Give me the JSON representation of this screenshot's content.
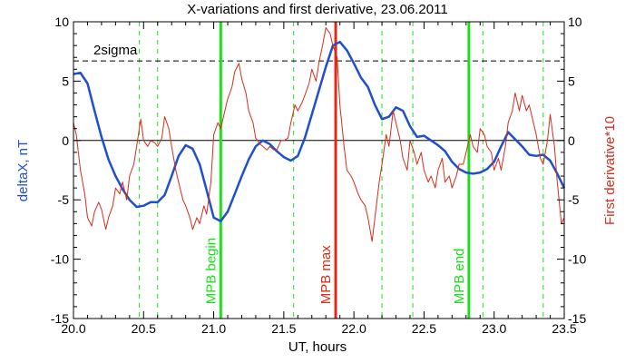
{
  "chart_data": {
    "type": "line",
    "title": "X-variations and first derivative, 23.06.2011",
    "xlabel": "UT, hours",
    "ylabel_left": "deltaX, nT",
    "ylabel_right": "First derivative*10",
    "xlim": [
      20.0,
      23.5
    ],
    "ylim": [
      -15,
      10
    ],
    "x_ticks": [
      "20.0",
      "20.5",
      "21.0",
      "21.5",
      "22.0",
      "22.5",
      "23.0",
      "23.5"
    ],
    "y_ticks_left": [
      "10",
      "5",
      "0",
      "-5",
      "-10",
      "-15"
    ],
    "y_ticks_right": [
      "10",
      "5",
      "0",
      "-5",
      "-10",
      "-15"
    ],
    "grid": false,
    "colors": {
      "deltaX": "#1f4fcf",
      "derivative": "#d62d1a",
      "mpb_edge": "#19e019",
      "mpb_max": "#e02a14",
      "threshold": "#000000"
    },
    "zero_line": 0,
    "threshold": {
      "label": "2sigma",
      "value": 6.7
    },
    "markers": [
      {
        "label": "MPB begin",
        "x": 21.05,
        "kind": "edge"
      },
      {
        "label": "MPB max",
        "x": 21.87,
        "kind": "max"
      },
      {
        "label": "MPB end",
        "x": 22.82,
        "kind": "edge"
      }
    ],
    "dashed_verticals": [
      20.47,
      20.6,
      21.57,
      22.2,
      22.42,
      22.92,
      23.35
    ],
    "series": [
      {
        "key": "deltaX",
        "x": [
          20.0,
          20.05,
          20.1,
          20.15,
          20.2,
          20.25,
          20.3,
          20.35,
          20.4,
          20.45,
          20.5,
          20.55,
          20.6,
          20.65,
          20.7,
          20.75,
          20.8,
          20.85,
          20.9,
          20.95,
          21.0,
          21.05,
          21.1,
          21.15,
          21.2,
          21.25,
          21.3,
          21.35,
          21.4,
          21.45,
          21.5,
          21.55,
          21.6,
          21.65,
          21.7,
          21.75,
          21.8,
          21.85,
          21.9,
          21.95,
          22.0,
          22.05,
          22.1,
          22.15,
          22.2,
          22.25,
          22.3,
          22.35,
          22.4,
          22.45,
          22.5,
          22.55,
          22.6,
          22.65,
          22.7,
          22.75,
          22.8,
          22.85,
          22.9,
          22.95,
          23.0,
          23.05,
          23.1,
          23.15,
          23.2,
          23.25,
          23.3,
          23.35,
          23.4,
          23.45,
          23.5
        ],
        "y": [
          5.6,
          5.7,
          4.8,
          2.5,
          0.3,
          -1.6,
          -3.0,
          -4.1,
          -5.0,
          -5.6,
          -5.5,
          -5.2,
          -5.2,
          -4.6,
          -3.0,
          -1.3,
          -0.4,
          -0.7,
          -2.0,
          -4.2,
          -6.5,
          -6.8,
          -6.0,
          -4.5,
          -3.0,
          -1.6,
          -0.5,
          0.0,
          -0.3,
          -0.9,
          -1.4,
          -1.7,
          -1.3,
          0.2,
          2.2,
          4.2,
          6.2,
          8.0,
          8.3,
          7.6,
          6.5,
          5.3,
          4.5,
          3.0,
          1.8,
          2.0,
          2.8,
          2.5,
          1.2,
          0.3,
          0.4,
          0.0,
          -0.4,
          -0.9,
          -1.8,
          -2.4,
          -2.7,
          -2.8,
          -2.7,
          -2.4,
          -1.8,
          -0.5,
          0.7,
          0.1,
          -0.5,
          -1.2,
          -1.3,
          -1.2,
          -1.7,
          -2.8,
          -4.0
        ]
      },
      {
        "key": "derivative",
        "x": [
          20.0,
          20.02,
          20.05,
          20.08,
          20.1,
          20.13,
          20.15,
          20.18,
          20.2,
          20.23,
          20.25,
          20.28,
          20.3,
          20.33,
          20.35,
          20.38,
          20.4,
          20.43,
          20.45,
          20.48,
          20.5,
          20.53,
          20.55,
          20.58,
          20.6,
          20.63,
          20.65,
          20.68,
          20.7,
          20.73,
          20.75,
          20.78,
          20.8,
          20.83,
          20.85,
          20.88,
          20.9,
          20.93,
          20.95,
          20.98,
          21.0,
          21.03,
          21.05,
          21.08,
          21.1,
          21.13,
          21.15,
          21.18,
          21.2,
          21.23,
          21.25,
          21.28,
          21.3,
          21.33,
          21.35,
          21.38,
          21.4,
          21.43,
          21.45,
          21.48,
          21.5,
          21.53,
          21.55,
          21.58,
          21.6,
          21.63,
          21.65,
          21.68,
          21.7,
          21.73,
          21.75,
          21.78,
          21.8,
          21.83,
          21.85,
          21.88,
          21.9,
          21.93,
          21.95,
          21.98,
          22.0,
          22.03,
          22.05,
          22.08,
          22.1,
          22.13,
          22.15,
          22.18,
          22.2,
          22.23,
          22.25,
          22.28,
          22.3,
          22.33,
          22.35,
          22.38,
          22.4,
          22.43,
          22.45,
          22.48,
          22.5,
          22.53,
          22.55,
          22.58,
          22.6,
          22.63,
          22.65,
          22.68,
          22.7,
          22.73,
          22.75,
          22.78,
          22.8,
          22.83,
          22.85,
          22.88,
          22.9,
          22.93,
          22.95,
          22.98,
          23.0,
          23.03,
          23.05,
          23.08,
          23.1,
          23.13,
          23.15,
          23.18,
          23.2,
          23.23,
          23.25,
          23.28,
          23.3,
          23.33,
          23.35,
          23.38,
          23.4,
          23.43,
          23.45,
          23.48,
          23.5
        ],
        "y": [
          1.5,
          0.5,
          -2.5,
          -4.5,
          -6.5,
          -7.2,
          -6.0,
          -5.2,
          -5.8,
          -7.5,
          -6.5,
          -5.5,
          -4.0,
          -4.5,
          -3.5,
          -5.0,
          -3.0,
          -2.0,
          -0.5,
          1.8,
          0.0,
          -0.5,
          0.0,
          -0.2,
          -0.5,
          0.2,
          2.0,
          1.0,
          -0.5,
          -2.5,
          -3.5,
          -5.0,
          -5.5,
          -6.5,
          -7.5,
          -6.5,
          -7.0,
          -5.5,
          -6.2,
          -3.5,
          0.5,
          1.5,
          1.0,
          2.5,
          3.5,
          4.5,
          5.8,
          6.5,
          5.2,
          4.0,
          2.5,
          1.5,
          0.2,
          -0.3,
          -0.5,
          -0.8,
          -0.5,
          -0.8,
          -0.8,
          0.0,
          0.0,
          0.2,
          1.5,
          3.0,
          2.5,
          3.2,
          3.8,
          4.8,
          6.0,
          5.0,
          6.5,
          8.2,
          9.5,
          9.0,
          8.0,
          7.0,
          3.0,
          -0.5,
          -2.5,
          -3.0,
          -3.5,
          -4.5,
          -5.0,
          -5.5,
          -6.5,
          -8.5,
          -6.5,
          -3.5,
          -2.0,
          0.5,
          -0.5,
          2.5,
          1.5,
          0.0,
          -1.5,
          -2.5,
          0.0,
          -1.0,
          -2.0,
          -1.0,
          -2.5,
          -3.5,
          -3.0,
          -4.0,
          -2.5,
          -1.5,
          -3.5,
          -3.0,
          -4.0,
          -3.0,
          -2.0,
          -2.0,
          -1.0,
          0.5,
          -0.5,
          -1.0,
          1.0,
          0.5,
          -0.5,
          -1.0,
          -2.5,
          -1.5,
          -2.5,
          -0.5,
          1.5,
          2.5,
          4.0,
          2.5,
          3.8,
          2.5,
          3.0,
          1.5,
          0.5,
          -1.5,
          -2.0,
          0.0,
          2.2,
          -0.5,
          -3.5,
          -7.0,
          -6.5
        ]
      }
    ]
  }
}
